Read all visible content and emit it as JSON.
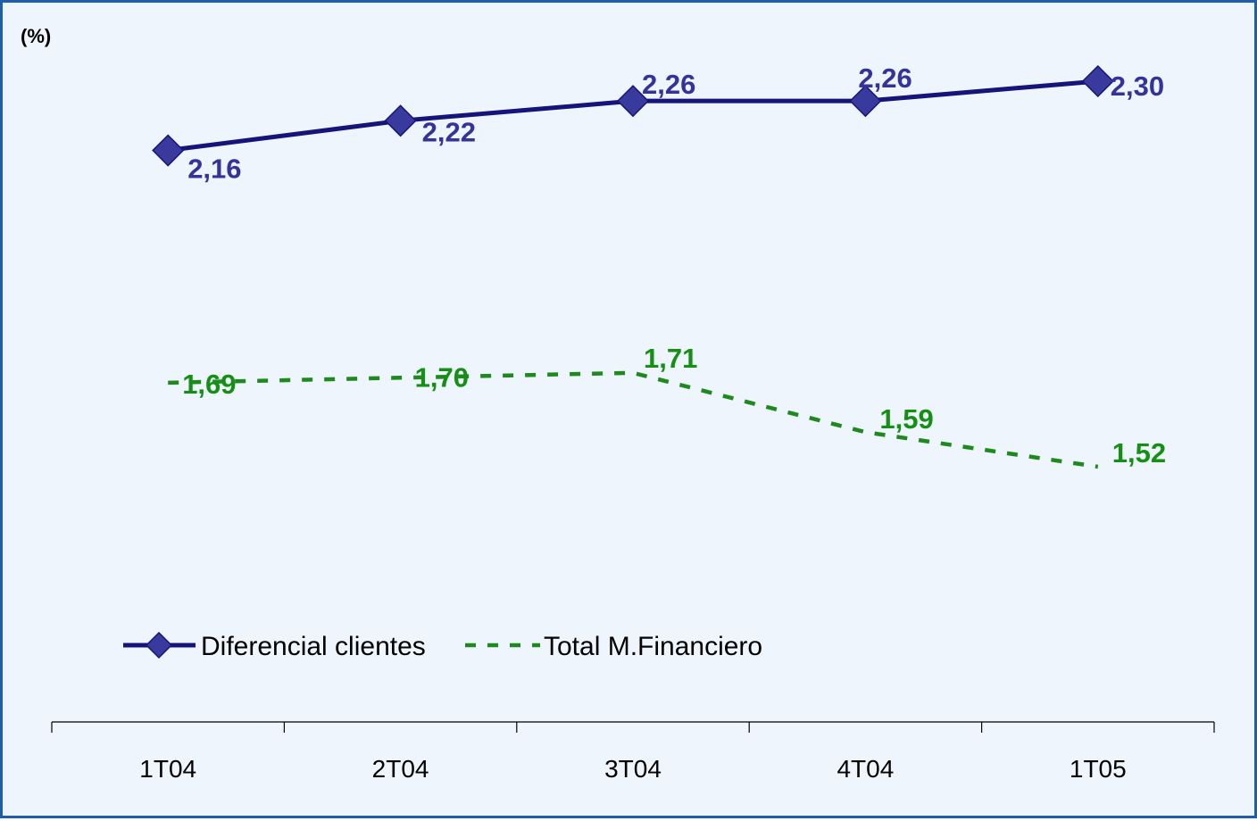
{
  "chart_data": {
    "type": "line",
    "unit_label": "(%)",
    "categories": [
      "1T04",
      "2T04",
      "3T04",
      "4T04",
      "1T05"
    ],
    "series": [
      {
        "name": "Diferencial clientes",
        "values": [
          2.16,
          2.22,
          2.26,
          2.26,
          2.3
        ],
        "labels": [
          "2,16",
          "2,22",
          "2,26",
          "2,26",
          "2,30"
        ],
        "color": "#14147a",
        "label_color": "#33339a",
        "marker": "diamond",
        "line_style": "solid"
      },
      {
        "name": "Total M.Financiero",
        "values": [
          1.69,
          1.7,
          1.71,
          1.59,
          1.52
        ],
        "labels": [
          "1,69",
          "1,70",
          "1,71",
          "1,59",
          "1,52"
        ],
        "color": "#1e8a1e",
        "label_color": "#159015",
        "marker": "none",
        "line_style": "dashed"
      }
    ],
    "legend_position": "bottom-left",
    "grid": false,
    "y_axis_visible": false,
    "background_color": "#eef5fc",
    "border_color": "#1f5ea8"
  }
}
